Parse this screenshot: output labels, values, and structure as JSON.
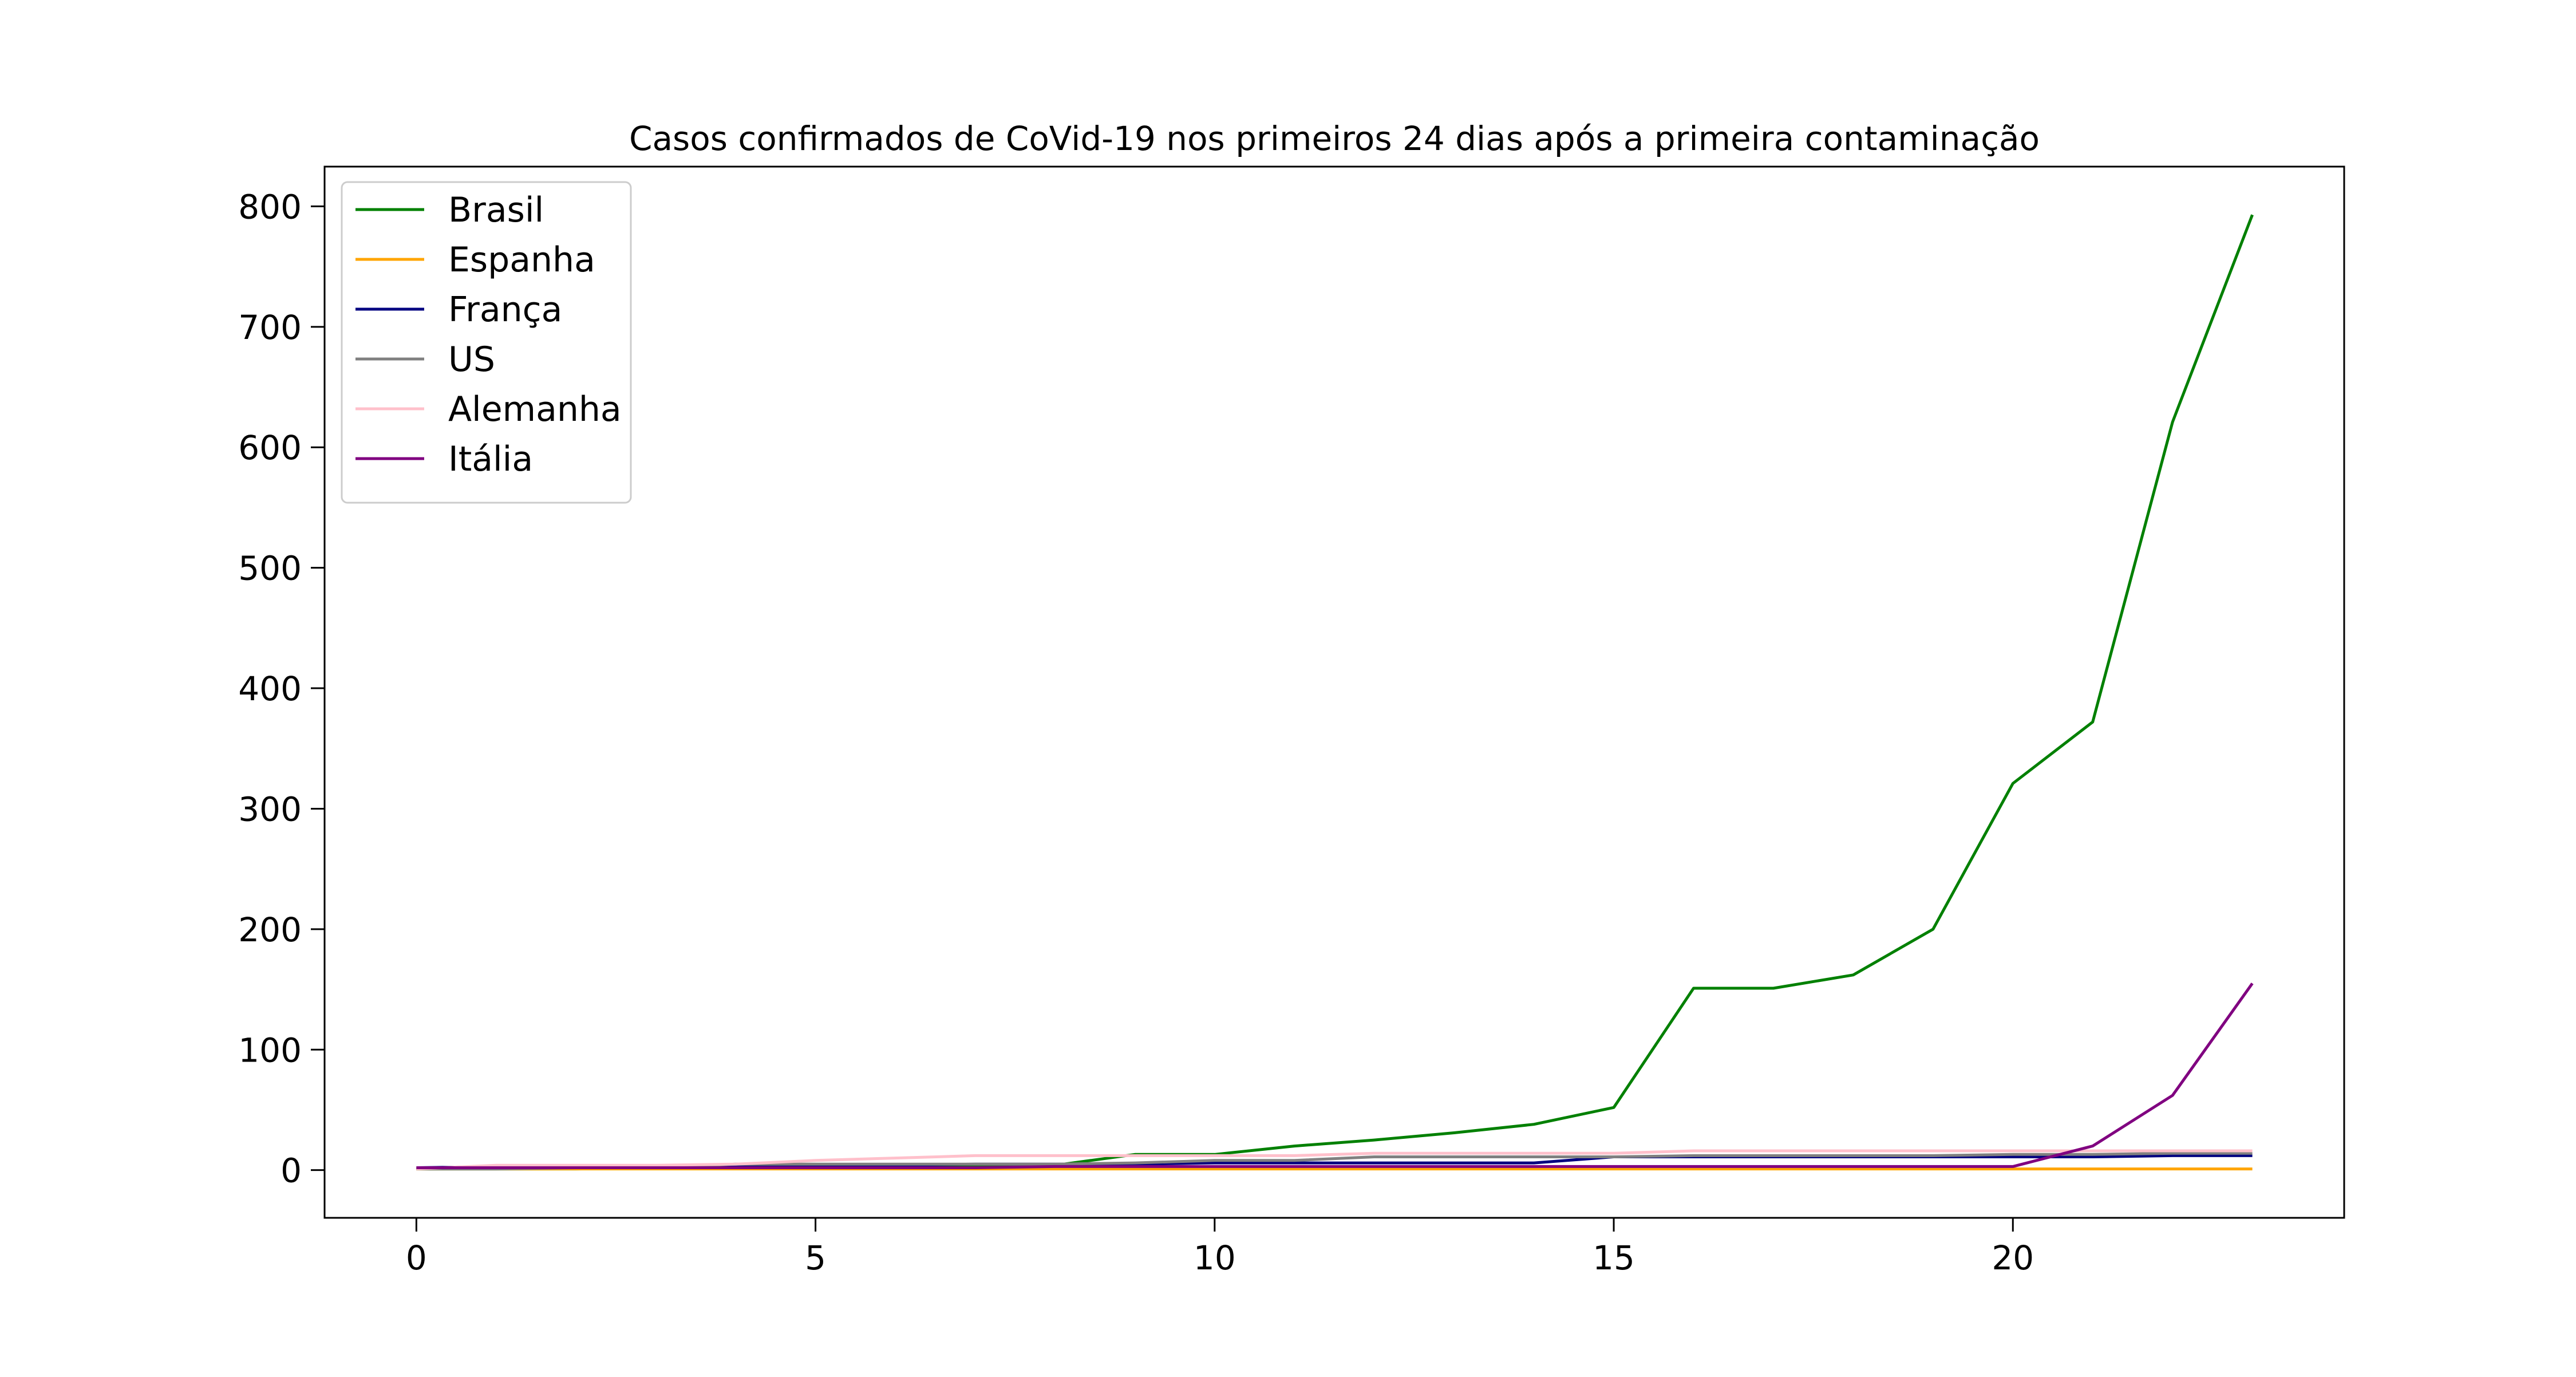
{
  "chart_data": {
    "type": "line",
    "title": "Casos confirmados de CoVid-19 nos primeiros 24 dias após a primeira contaminação",
    "xlabel": "",
    "ylabel": "",
    "xlim": [
      -1.15,
      24.15
    ],
    "ylim": [
      -39.6,
      833
    ],
    "x_ticks": [
      0,
      5,
      10,
      15,
      20
    ],
    "x_tick_labels": [
      "0",
      "5",
      "10",
      "15",
      "20"
    ],
    "y_ticks": [
      0,
      100,
      200,
      300,
      400,
      500,
      600,
      700,
      800
    ],
    "y_tick_labels": [
      "0",
      "100",
      "200",
      "300",
      "400",
      "500",
      "600",
      "700",
      "800"
    ],
    "grid": false,
    "legend_position": "top-left",
    "x": [
      0,
      1,
      2,
      3,
      4,
      5,
      6,
      7,
      8,
      9,
      10,
      11,
      12,
      13,
      14,
      15,
      16,
      17,
      18,
      19,
      20,
      21,
      22,
      23
    ],
    "series": [
      {
        "name": "Brasil",
        "color": "#008000",
        "values": [
          1,
          1,
          1,
          2,
          2,
          2,
          2,
          4,
          4,
          13,
          13,
          20,
          25,
          31,
          38,
          52,
          151,
          151,
          162,
          200,
          321,
          372,
          621,
          793
        ]
      },
      {
        "name": "Espanha",
        "color": "#ffa500",
        "values": [
          1,
          1,
          1,
          1,
          1,
          1,
          1,
          1,
          1,
          1,
          1,
          1,
          1,
          1,
          1,
          1,
          1,
          1,
          1,
          1,
          1,
          1,
          1,
          1
        ]
      },
      {
        "name": "França",
        "color": "#000080",
        "values": [
          2,
          3,
          3,
          3,
          3,
          4,
          4,
          5,
          5,
          5,
          6,
          6,
          6,
          6,
          6,
          11,
          11,
          11,
          11,
          11,
          11,
          11,
          12,
          12
        ]
      },
      {
        "name": "US",
        "color": "#808080",
        "values": [
          1,
          1,
          2,
          2,
          5,
          5,
          5,
          5,
          5,
          6,
          8,
          8,
          11,
          11,
          11,
          11,
          12,
          12,
          12,
          12,
          13,
          13,
          14,
          14
        ]
      },
      {
        "name": "Alemanha",
        "color": "#ffc0cb",
        "values": [
          1,
          4,
          4,
          4,
          5,
          8,
          10,
          12,
          12,
          12,
          12,
          12,
          14,
          14,
          14,
          14,
          16,
          16,
          16,
          16,
          16,
          16,
          16,
          16
        ]
      },
      {
        "name": "Itália",
        "color": "#800080",
        "values": [
          2,
          2,
          2,
          2,
          2,
          2,
          2,
          2,
          3,
          3,
          3,
          3,
          3,
          3,
          3,
          3,
          3,
          3,
          3,
          3,
          3,
          20,
          62,
          155
        ]
      }
    ]
  }
}
